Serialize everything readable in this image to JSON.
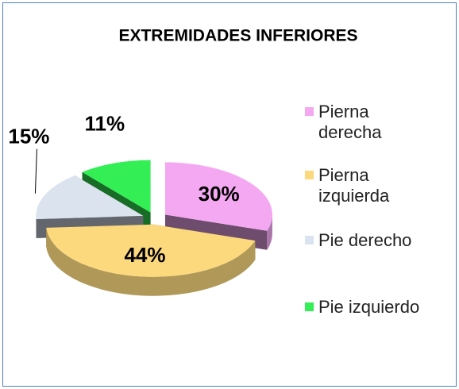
{
  "chart_data": {
    "type": "pie",
    "title": "EXTREMIDADES INFERIORES",
    "categories": [
      "Pierna derecha",
      "Pierna izquierda",
      "Pie derecho",
      "Pie izquierdo"
    ],
    "values": [
      30,
      44,
      15,
      11
    ],
    "value_labels": [
      "30%",
      "44%",
      "15%",
      "11%"
    ],
    "colors": [
      "#f4a8f2",
      "#fcd97d",
      "#dbe3ef",
      "#33ef55"
    ],
    "legend": "right"
  }
}
